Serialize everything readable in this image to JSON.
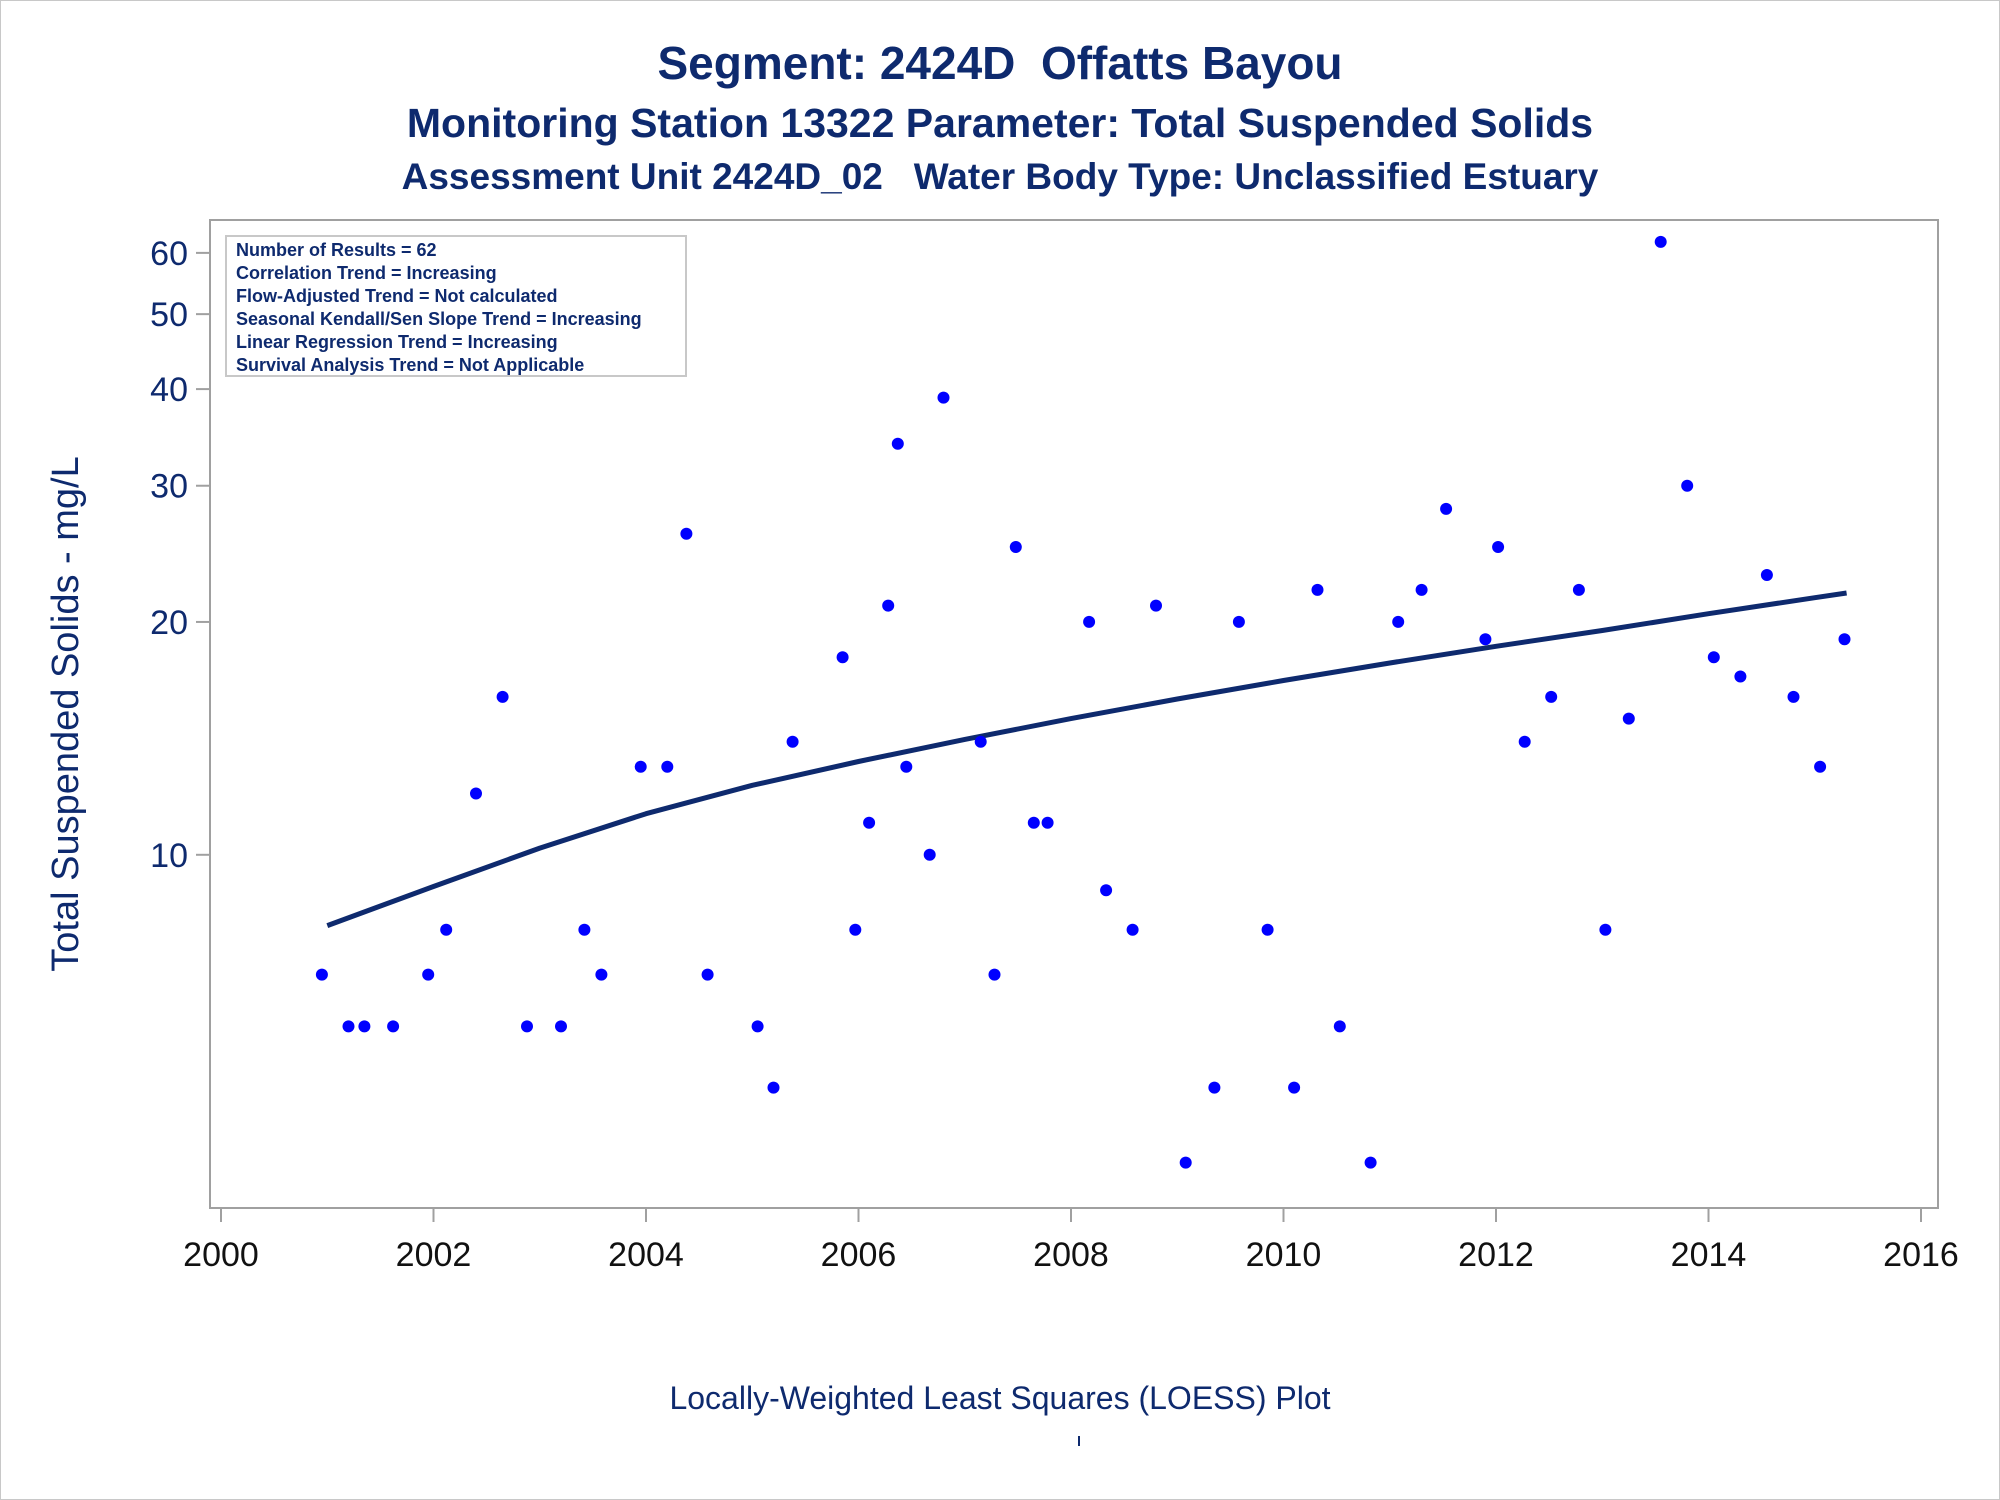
{
  "titles": {
    "line1": "Segment: 2424D  Offatts Bayou",
    "line2": "Monitoring Station 13322 Parameter: Total Suspended Solids",
    "line3": "Assessment Unit 2424D_02   Water Body Type: Unclassified Estuary"
  },
  "footer": "Locally-Weighted Least Squares (LOESS) Plot",
  "colors": {
    "text": "#0e2a6e",
    "points": "#0000ff",
    "line": "#0e2a6e",
    "frame": "#a0a0a0"
  },
  "chart_data": {
    "type": "scatter",
    "ylabel": "Total Suspended Solids - mg/L",
    "xlabel": "",
    "x_ticks": [
      2000,
      2002,
      2004,
      2006,
      2008,
      2010,
      2012,
      2014,
      2016
    ],
    "xlim": [
      2000,
      2016
    ],
    "y_scale": "log",
    "y_ticks": [
      10,
      20,
      30,
      40,
      50,
      60
    ],
    "ylim": [
      3.6,
      65
    ],
    "legend": {
      "placement": "top-left",
      "lines": [
        "Number of Results = 62",
        "Correlation Trend = Increasing",
        "Flow-Adjusted Trend = Not calculated",
        "Seasonal Kendall/Sen Slope Trend = Increasing",
        "Linear Regression Trend = Increasing",
        "Survival Analysis Trend = Not Applicable"
      ]
    },
    "series": [
      {
        "type": "scatter",
        "points": [
          [
            2000.95,
            7
          ],
          [
            2001.2,
            6
          ],
          [
            2001.35,
            6
          ],
          [
            2001.62,
            6
          ],
          [
            2001.95,
            7
          ],
          [
            2002.12,
            8
          ],
          [
            2002.4,
            12
          ],
          [
            2002.65,
            16
          ],
          [
            2002.88,
            6
          ],
          [
            2003.2,
            6
          ],
          [
            2003.42,
            8
          ],
          [
            2003.58,
            7
          ],
          [
            2003.95,
            13
          ],
          [
            2004.2,
            13
          ],
          [
            2004.38,
            26
          ],
          [
            2004.58,
            7
          ],
          [
            2005.05,
            6
          ],
          [
            2005.2,
            5
          ],
          [
            2005.38,
            14
          ],
          [
            2005.85,
            18
          ],
          [
            2005.97,
            8
          ],
          [
            2006.1,
            11
          ],
          [
            2006.28,
            21
          ],
          [
            2006.37,
            34
          ],
          [
            2006.45,
            13
          ],
          [
            2006.67,
            10
          ],
          [
            2006.8,
            39
          ],
          [
            2007.28,
            7
          ],
          [
            2007.15,
            14
          ],
          [
            2007.48,
            25
          ],
          [
            2007.65,
            11
          ],
          [
            2007.78,
            11
          ],
          [
            2008.17,
            20
          ],
          [
            2008.33,
            9
          ],
          [
            2008.58,
            8
          ],
          [
            2008.8,
            21
          ],
          [
            2009.08,
            4
          ],
          [
            2009.35,
            5
          ],
          [
            2009.58,
            20
          ],
          [
            2009.85,
            8
          ],
          [
            2010.1,
            5
          ],
          [
            2010.53,
            6
          ],
          [
            2010.32,
            22
          ],
          [
            2010.82,
            4
          ],
          [
            2011.08,
            20
          ],
          [
            2011.3,
            22
          ],
          [
            2011.53,
            28
          ],
          [
            2011.9,
            19
          ],
          [
            2012.02,
            25
          ],
          [
            2012.27,
            14
          ],
          [
            2012.52,
            16
          ],
          [
            2012.78,
            22
          ],
          [
            2013.03,
            8
          ],
          [
            2013.25,
            15
          ],
          [
            2013.55,
            62
          ],
          [
            2013.8,
            30
          ],
          [
            2014.05,
            18
          ],
          [
            2014.3,
            17
          ],
          [
            2014.55,
            23
          ],
          [
            2014.8,
            16
          ],
          [
            2015.05,
            13
          ],
          [
            2015.28,
            19
          ]
        ]
      },
      {
        "type": "line",
        "points": [
          [
            2001.0,
            8.1
          ],
          [
            2002.0,
            9.1
          ],
          [
            2003.0,
            10.2
          ],
          [
            2004.0,
            11.3
          ],
          [
            2005.0,
            12.3
          ],
          [
            2006.0,
            13.2
          ],
          [
            2007.0,
            14.1
          ],
          [
            2008.0,
            15.0
          ],
          [
            2009.0,
            15.9
          ],
          [
            2010.0,
            16.8
          ],
          [
            2011.0,
            17.7
          ],
          [
            2012.0,
            18.6
          ],
          [
            2013.0,
            19.5
          ],
          [
            2014.0,
            20.5
          ],
          [
            2015.0,
            21.5
          ],
          [
            2015.3,
            21.8
          ]
        ]
      }
    ]
  }
}
